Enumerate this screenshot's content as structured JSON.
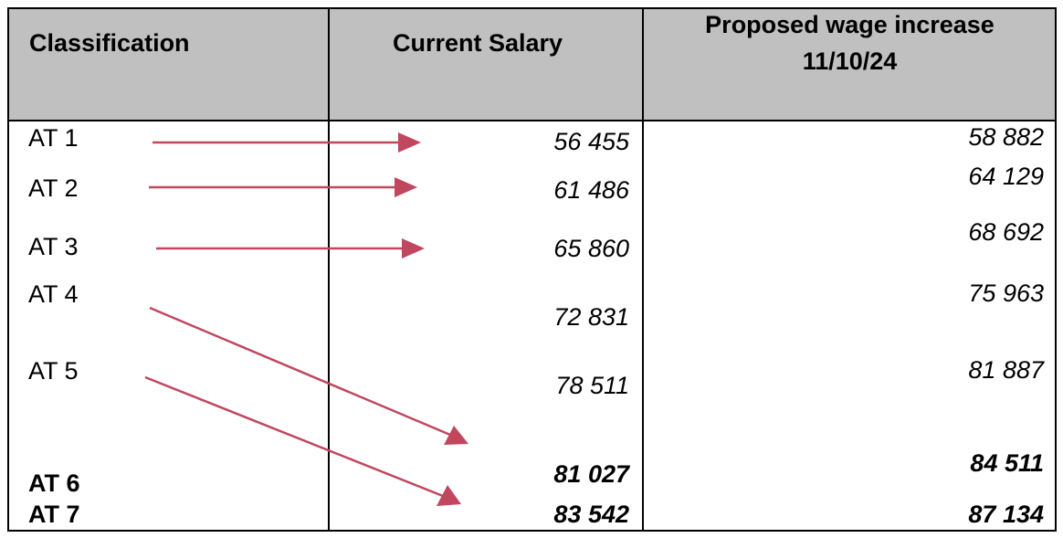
{
  "header": {
    "classification": "Classification",
    "current_salary": "Current Salary",
    "proposed_line1": "Proposed wage increase",
    "proposed_line2": "11/10/24"
  },
  "rows": [
    {
      "classification": "AT 1",
      "current": "56 455",
      "proposed": "58 882"
    },
    {
      "classification": "AT 2",
      "current": "61 486",
      "proposed": "64 129"
    },
    {
      "classification": "AT 3",
      "current": "65 860",
      "proposed": "68 692"
    },
    {
      "classification": "AT 4",
      "current": "72 831",
      "proposed": "75 963"
    },
    {
      "classification": "AT 5",
      "current": "78 511",
      "proposed": "81 887"
    },
    {
      "classification": "AT 6",
      "current": "81 027",
      "proposed": "84 511"
    },
    {
      "classification": "AT 7",
      "current": "83 542",
      "proposed": "87 134"
    }
  ],
  "colors": {
    "header_bg": "#c0c0c0",
    "arrow": "#c0475e"
  }
}
